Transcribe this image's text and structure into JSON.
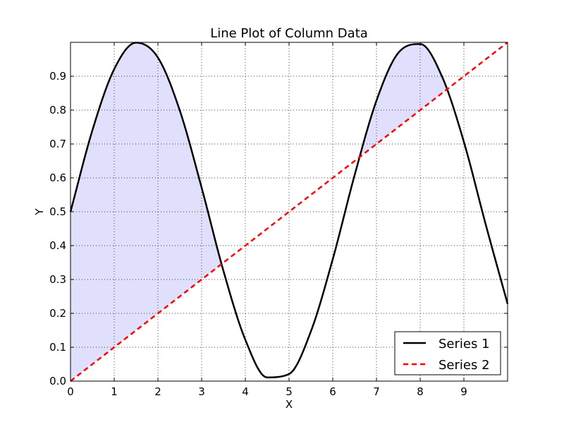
{
  "chart_data": {
    "type": "line",
    "title": "Line Plot of Column Data",
    "xlabel": "X",
    "ylabel": "Y",
    "xlim": [
      0,
      10
    ],
    "ylim": [
      0,
      1
    ],
    "xticks": [
      0,
      1,
      2,
      3,
      4,
      5,
      6,
      7,
      8,
      9
    ],
    "xtick_labels": [
      "0",
      "1",
      "2",
      "3",
      "4",
      "5",
      "6",
      "7",
      "8",
      "9"
    ],
    "yticks": [
      0.0,
      0.1,
      0.2,
      0.3,
      0.4,
      0.5,
      0.6,
      0.7,
      0.8,
      0.9
    ],
    "ytick_labels": [
      "0.0",
      "0.1",
      "0.2",
      "0.3",
      "0.4",
      "0.5",
      "0.6",
      "0.7",
      "0.8",
      "0.9"
    ],
    "grid": true,
    "legend_position": "lower-right",
    "series": [
      {
        "name": "Series 1",
        "color": "#000000",
        "style": "solid",
        "x": [
          0,
          0.5,
          1,
          1.5,
          2,
          2.5,
          3,
          3.5,
          4,
          4.5,
          5,
          5.5,
          6,
          6.5,
          7,
          7.5,
          8,
          8.5,
          9,
          9.5,
          10
        ],
        "values": [
          0.5,
          0.74,
          0.921,
          0.999,
          0.955,
          0.799,
          0.571,
          0.325,
          0.122,
          0.011,
          0.021,
          0.147,
          0.36,
          0.608,
          0.828,
          0.969,
          0.995,
          0.899,
          0.706,
          0.462,
          0.228
        ]
      },
      {
        "name": "Series 2",
        "color": "#ff0000",
        "style": "dashed",
        "x": [
          0,
          10
        ],
        "values": [
          0,
          1
        ]
      }
    ],
    "fill_between": {
      "series": [
        "Series 1",
        "Series 2"
      ],
      "where": "Series 1 above Series 2",
      "color": "#e0e0fc"
    }
  }
}
